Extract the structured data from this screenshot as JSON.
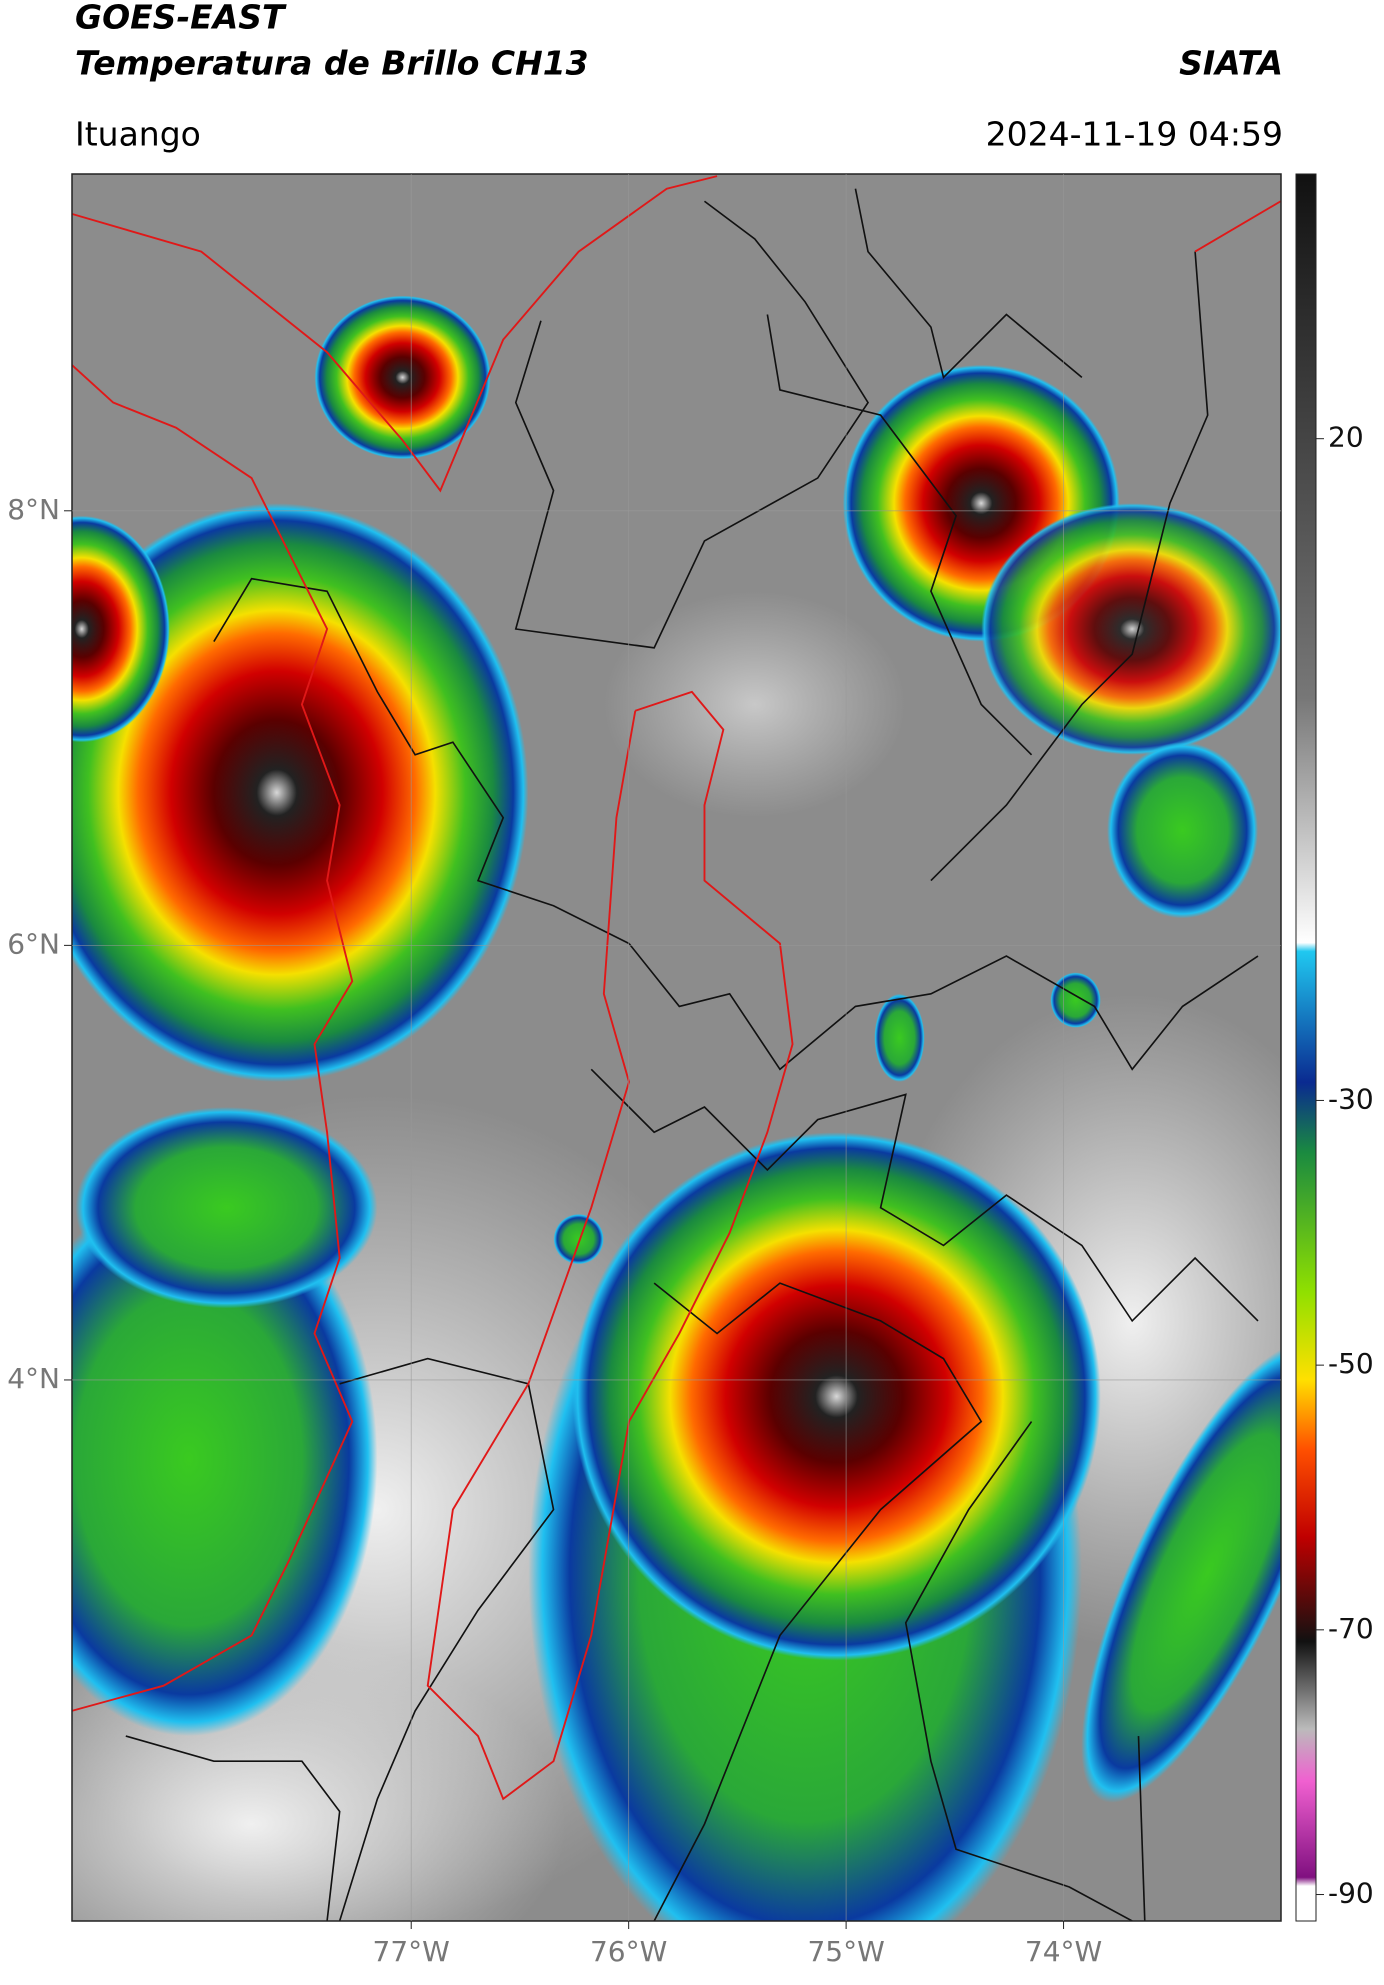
{
  "header": {
    "title_line1": "GOES-EAST",
    "title_line2": "Temperatura de Brillo CH13",
    "brand": "SIATA",
    "location": "Ituango",
    "timestamp": "2024-11-19 04:59"
  },
  "map": {
    "lonlim": [
      -78.56,
      -73.0
    ],
    "latlim": [
      1.51,
      9.55
    ],
    "lon_ticks": [
      {
        "value": -77,
        "label": "77°W"
      },
      {
        "value": -76,
        "label": "76°W"
      },
      {
        "value": -75,
        "label": "75°W"
      },
      {
        "value": -74,
        "label": "74°W"
      }
    ],
    "lat_ticks": [
      {
        "value": 8,
        "label": "8°N"
      },
      {
        "value": 6,
        "label": "6°N"
      },
      {
        "value": 4,
        "label": "4°N"
      }
    ]
  },
  "colorbar": {
    "lim": [
      -92,
      40
    ],
    "ticks": [
      20,
      -30,
      -50,
      -70,
      -90
    ]
  }
}
